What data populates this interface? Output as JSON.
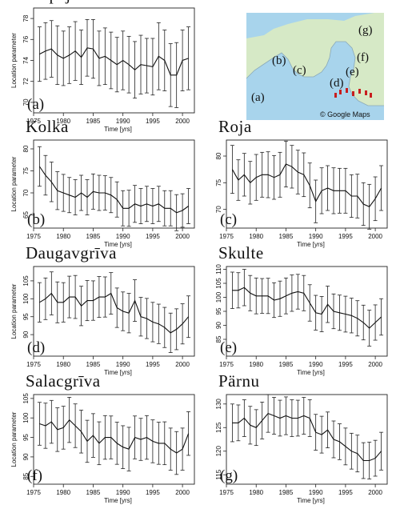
{
  "map": {
    "letters": [
      "(a)",
      "(b)",
      "(c)",
      "(d)",
      "(e)",
      "(f)",
      "(g)"
    ],
    "credit": "© Google Maps",
    "colors": {
      "water": "#a8d4ec",
      "land": "#d6e9c6",
      "marker": "#c81e1e"
    }
  },
  "chart_data": [
    {
      "type": "line",
      "panel": "a",
      "station": "Liepāja",
      "letter": "(a)",
      "xlabel": "Time [yrs]",
      "ylabel": "Location parameter",
      "xlim": [
        1975,
        2002
      ],
      "ylim": [
        69,
        79
      ],
      "xticks": [
        1975,
        1980,
        1985,
        1990,
        1995,
        2000
      ],
      "yticks": [
        70,
        72,
        74,
        76,
        78
      ],
      "x": [
        1976,
        1977,
        1978,
        1979,
        1980,
        1981,
        1982,
        1983,
        1984,
        1985,
        1986,
        1987,
        1988,
        1989,
        1990,
        1991,
        1992,
        1993,
        1994,
        1995,
        1996,
        1997,
        1998,
        1999,
        2000,
        2001
      ],
      "y": [
        74.6,
        74.9,
        75.1,
        74.5,
        74.2,
        74.5,
        74.9,
        74.3,
        75.2,
        75.1,
        74.2,
        74.4,
        74.0,
        73.6,
        74.0,
        73.6,
        73.1,
        73.6,
        73.5,
        73.4,
        74.4,
        74.0,
        72.6,
        72.6,
        74.0,
        74.2
      ],
      "err": [
        2.6,
        2.7,
        2.7,
        2.8,
        2.6,
        2.7,
        2.8,
        2.6,
        2.7,
        2.8,
        2.6,
        2.7,
        2.7,
        2.6,
        2.8,
        2.7,
        2.7,
        2.8,
        2.6,
        2.7,
        3.2,
        2.9,
        3.0,
        3.1,
        2.9,
        3.0
      ]
    },
    {
      "type": "line",
      "panel": "b",
      "station": "Kolka",
      "letter": "(b)",
      "xlabel": "Time [yrs]",
      "ylabel": "Location parameter",
      "xlim": [
        1975,
        2002
      ],
      "ylim": [
        62,
        82
      ],
      "xticks": [
        1975,
        1980,
        1985,
        1990,
        1995,
        2000
      ],
      "yticks": [
        65,
        70,
        75,
        80
      ],
      "x": [
        1976,
        1977,
        1978,
        1979,
        1980,
        1981,
        1982,
        1983,
        1984,
        1985,
        1986,
        1987,
        1988,
        1989,
        1990,
        1991,
        1992,
        1993,
        1994,
        1995,
        1996,
        1997,
        1998,
        1999,
        2000,
        2001
      ],
      "y": [
        76.0,
        74.0,
        72.5,
        70.5,
        70.0,
        69.5,
        69.0,
        70.0,
        69.0,
        70.3,
        70.0,
        70.0,
        69.5,
        68.5,
        66.5,
        66.5,
        67.5,
        67.0,
        67.5,
        67.0,
        67.5,
        66.5,
        66.5,
        65.5,
        66.0,
        67.0
      ],
      "err": [
        4.5,
        4.5,
        4.5,
        4.3,
        4.2,
        4.0,
        4.0,
        4.0,
        4.0,
        4.0,
        4.0,
        3.9,
        4.0,
        4.0,
        4.0,
        4.1,
        4.2,
        4.0,
        4.0,
        4.0,
        4.0,
        4.0,
        4.0,
        4.1,
        3.8,
        4.0
      ]
    },
    {
      "type": "line",
      "panel": "c",
      "station": "Roja",
      "letter": "(c)",
      "xlabel": "Time [yrs]",
      "ylabel": "",
      "ylim": [
        66.5,
        83
      ],
      "xlim": [
        1975,
        2002
      ],
      "xticks": [
        1975,
        1980,
        1985,
        1990,
        1995,
        2000
      ],
      "yticks": [
        70,
        75,
        80
      ],
      "x": [
        1976,
        1977,
        1978,
        1979,
        1980,
        1981,
        1982,
        1983,
        1984,
        1985,
        1986,
        1987,
        1988,
        1989,
        1990,
        1991,
        1992,
        1993,
        1994,
        1995,
        1996,
        1997,
        1998,
        1999,
        2000,
        2001
      ],
      "y": [
        77.5,
        75.5,
        76.5,
        75.0,
        76.0,
        76.5,
        76.5,
        76.0,
        76.5,
        78.5,
        78.0,
        77.0,
        76.5,
        74.5,
        71.5,
        73.5,
        74.0,
        73.5,
        73.5,
        73.5,
        72.5,
        72.5,
        71.0,
        70.5,
        72.0,
        74.0
      ],
      "err": [
        4.5,
        3.8,
        4.0,
        4.0,
        4.3,
        4.2,
        4.3,
        4.1,
        4.2,
        4.3,
        4.0,
        4.1,
        4.1,
        4.2,
        4.0,
        4.3,
        4.2,
        4.3,
        4.2,
        4.2,
        4.0,
        4.1,
        4.0,
        4.2,
        4.1,
        4.2
      ]
    },
    {
      "type": "line",
      "panel": "d",
      "station": "Daugavgrīva",
      "letter": "(d)",
      "xlabel": "Time [yrs]",
      "ylabel": "Location parameter",
      "xlim": [
        1975,
        2002
      ],
      "ylim": [
        84,
        109
      ],
      "xticks": [
        1975,
        1980,
        1985,
        1990,
        1995,
        2000
      ],
      "yticks": [
        90,
        95,
        100,
        105
      ],
      "x": [
        1976,
        1977,
        1978,
        1979,
        1980,
        1981,
        1982,
        1983,
        1984,
        1985,
        1986,
        1987,
        1988,
        1989,
        1990,
        1991,
        1992,
        1993,
        1994,
        1995,
        1996,
        1997,
        1998,
        1999,
        2000,
        2001
      ],
      "y": [
        99.0,
        100.0,
        101.5,
        99.0,
        99.0,
        100.5,
        100.5,
        98.0,
        99.5,
        99.5,
        100.5,
        100.5,
        101.5,
        97.5,
        96.5,
        96.0,
        99.5,
        95.0,
        94.5,
        93.5,
        93.0,
        92.0,
        90.5,
        91.5,
        93.0,
        95.0
      ],
      "err": [
        5.5,
        5.8,
        6.0,
        5.7,
        5.5,
        5.8,
        6.0,
        5.5,
        5.6,
        5.5,
        5.7,
        5.6,
        5.8,
        5.5,
        5.4,
        5.5,
        5.8,
        5.4,
        5.6,
        5.5,
        5.5,
        5.6,
        5.5,
        5.7,
        5.6,
        5.8
      ]
    },
    {
      "type": "line",
      "panel": "e",
      "station": "Skulte",
      "letter": "(e)",
      "xlabel": "Time [yrs]",
      "ylabel": "",
      "xlim": [
        1975,
        2002
      ],
      "ylim": [
        79,
        111
      ],
      "xticks": [
        1975,
        1980,
        1985,
        1990,
        1995,
        2000
      ],
      "yticks": [
        85,
        90,
        95,
        100,
        105,
        110
      ],
      "x": [
        1976,
        1977,
        1978,
        1979,
        1980,
        1981,
        1982,
        1983,
        1984,
        1985,
        1986,
        1987,
        1988,
        1989,
        1990,
        1991,
        1992,
        1993,
        1994,
        1995,
        1996,
        1997,
        1998,
        1999,
        2000,
        2001
      ],
      "y": [
        102.5,
        102.5,
        103.5,
        101.5,
        100.5,
        100.5,
        100.5,
        99.0,
        99.5,
        100.5,
        101.5,
        102.0,
        101.5,
        98.0,
        94.5,
        94.0,
        97.5,
        95.0,
        94.5,
        94.0,
        93.5,
        92.5,
        91.0,
        89.0,
        91.0,
        93.0
      ],
      "err": [
        6.5,
        6.3,
        6.5,
        6.3,
        6.4,
        6.2,
        6.3,
        6.2,
        6.3,
        6.4,
        6.5,
        6.2,
        6.3,
        6.5,
        6.2,
        6.3,
        6.5,
        6.2,
        6.3,
        6.4,
        6.2,
        6.3,
        6.2,
        6.4,
        6.3,
        6.5
      ]
    },
    {
      "type": "line",
      "panel": "f",
      "station": "Salacgrīva",
      "letter": "(f)",
      "xlabel": "Time [yrs]",
      "ylabel": "Location parameter",
      "xlim": [
        1975,
        2002
      ],
      "ylim": [
        83,
        106
      ],
      "xticks": [
        1975,
        1980,
        1985,
        1990,
        1995,
        2000
      ],
      "yticks": [
        85,
        90,
        95,
        100,
        105
      ],
      "x": [
        1976,
        1977,
        1978,
        1979,
        1980,
        1981,
        1982,
        1983,
        1984,
        1985,
        1986,
        1987,
        1988,
        1989,
        1990,
        1991,
        1992,
        1993,
        1994,
        1995,
        1996,
        1997,
        1998,
        1999,
        2000,
        2001
      ],
      "y": [
        98.5,
        98.0,
        99.0,
        97.0,
        97.5,
        99.5,
        98.0,
        96.5,
        94.0,
        95.5,
        93.5,
        95.0,
        95.0,
        93.5,
        92.5,
        92.0,
        95.0,
        94.5,
        95.0,
        94.0,
        93.5,
        93.5,
        92.0,
        91.0,
        92.0,
        96.0
      ],
      "err": [
        5.5,
        5.8,
        5.5,
        5.6,
        5.5,
        5.8,
        5.6,
        5.5,
        5.4,
        5.6,
        5.5,
        5.6,
        5.5,
        5.4,
        5.5,
        5.6,
        5.5,
        5.4,
        5.6,
        5.5,
        5.4,
        5.5,
        5.4,
        5.5,
        5.4,
        5.6
      ]
    },
    {
      "type": "line",
      "panel": "g",
      "station": "Pärnu",
      "letter": "(g)",
      "xlabel": "Time [yrs]",
      "ylabel": "",
      "xlim": [
        1975,
        2002
      ],
      "ylim": [
        113,
        132
      ],
      "xticks": [
        1975,
        1980,
        1985,
        1990,
        1995,
        2000
      ],
      "yticks": [
        115,
        120,
        125,
        130
      ],
      "x": [
        1976,
        1977,
        1978,
        1979,
        1980,
        1981,
        1982,
        1983,
        1984,
        1985,
        1986,
        1987,
        1988,
        1989,
        1990,
        1991,
        1992,
        1993,
        1994,
        1995,
        1996,
        1997,
        1998,
        1999,
        2000,
        2001
      ],
      "y": [
        126.0,
        126.0,
        127.0,
        125.5,
        125.0,
        126.5,
        128.0,
        127.5,
        127.0,
        127.5,
        127.0,
        127.0,
        127.5,
        127.0,
        124.0,
        123.5,
        124.5,
        122.5,
        122.0,
        121.0,
        120.0,
        119.5,
        118.0,
        118.0,
        118.5,
        120.0
      ],
      "err": [
        4.0,
        3.8,
        3.9,
        4.0,
        3.8,
        3.9,
        4.0,
        3.9,
        3.8,
        4.0,
        3.9,
        3.8,
        3.9,
        3.9,
        3.8,
        3.9,
        3.8,
        3.9,
        3.8,
        3.9,
        3.8,
        3.9,
        3.8,
        3.9,
        3.8,
        4.0
      ]
    }
  ]
}
